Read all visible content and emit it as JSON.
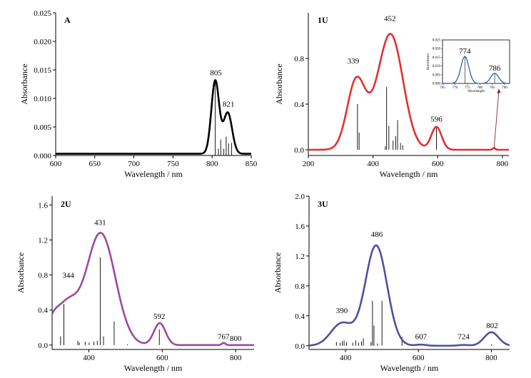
{
  "chart_data": [
    {
      "type": "line",
      "panel_label": "A",
      "xlabel": "Wavelength / nm",
      "ylabel": "Absorbance",
      "xlim": [
        600,
        850
      ],
      "ylim": [
        0,
        0.025
      ],
      "xticks": [
        600,
        650,
        700,
        750,
        800,
        850
      ],
      "xtick_labels": [
        "600",
        "650",
        "700",
        "750",
        "800",
        "850"
      ],
      "yticks": [
        0,
        0.005,
        0.01,
        0.015,
        0.02,
        0.025
      ],
      "ytick_labels": [
        "0.000",
        "0.005",
        "0.010",
        "0.015",
        "0.020",
        "0.025"
      ],
      "color": "#000000",
      "bands": [
        {
          "center": 804,
          "height": 0.0128,
          "width": 5
        },
        {
          "center": 820,
          "height": 0.0072,
          "width": 5.5
        }
      ],
      "baseline": 0.0003,
      "sticks": [
        {
          "x": 804,
          "y": 0.0128
        },
        {
          "x": 808,
          "y": 0.0012
        },
        {
          "x": 811,
          "y": 0.0028
        },
        {
          "x": 815,
          "y": 0.0012
        },
        {
          "x": 818,
          "y": 0.0033
        },
        {
          "x": 821,
          "y": 0.0021
        },
        {
          "x": 825,
          "y": 0.0022
        }
      ],
      "annotations": [
        {
          "text": "805",
          "x": 805,
          "y": 0.0133
        },
        {
          "text": "821",
          "x": 821,
          "y": 0.0078
        }
      ]
    },
    {
      "type": "line",
      "panel_label": "1U",
      "xlabel": "Wavelength / nm",
      "ylabel": "Absorbance",
      "xlim": [
        200,
        820
      ],
      "ylim": [
        -0.05,
        1.2
      ],
      "xticks": [
        200,
        400,
        600,
        800
      ],
      "xtick_labels": [
        "200",
        "400",
        "600",
        "800"
      ],
      "yticks": [
        0,
        0.4,
        0.8
      ],
      "ytick_labels": [
        "0.0",
        "0.4",
        "0.8"
      ],
      "color": "#e03232",
      "bands": [
        {
          "center": 348,
          "height": 0.6,
          "width": 28
        },
        {
          "center": 455,
          "height": 1.0,
          "width": 38
        },
        {
          "center": 400,
          "height": 0.08,
          "width": 30
        },
        {
          "center": 596,
          "height": 0.2,
          "width": 16
        },
        {
          "center": 774,
          "height": 0.015,
          "width": 4
        }
      ],
      "baseline": 0,
      "sticks": [
        {
          "x": 352,
          "y": 0.4
        },
        {
          "x": 357,
          "y": 0.15
        },
        {
          "x": 438,
          "y": 0.03
        },
        {
          "x": 442,
          "y": 0.55
        },
        {
          "x": 449,
          "y": 0.21
        },
        {
          "x": 462,
          "y": 0.08
        },
        {
          "x": 470,
          "y": 0.12
        },
        {
          "x": 476,
          "y": 0.26
        },
        {
          "x": 485,
          "y": 0.06
        },
        {
          "x": 492,
          "y": 0.04
        },
        {
          "x": 596,
          "y": 0.2
        }
      ],
      "annotations": [
        {
          "text": "339",
          "x": 339,
          "y": 0.72
        },
        {
          "text": "452",
          "x": 452,
          "y": 1.09
        },
        {
          "text": "596",
          "x": 596,
          "y": 0.21
        }
      ],
      "inset": {
        "type": "line",
        "xlabel": "Wavelength",
        "ylabel": "Absorbance",
        "xlim": [
          765,
          792
        ],
        "ylim": [
          0,
          0.025
        ],
        "xticks": [
          765,
          770,
          775,
          780,
          785,
          790
        ],
        "xtick_labels": [
          "765",
          "770",
          "775",
          "780",
          "785",
          "790"
        ],
        "yticks": [
          0,
          0.005,
          0.01,
          0.015,
          0.02,
          0.025
        ],
        "ytick_labels": [
          "0.000",
          "0.005",
          "0.010",
          "0.015",
          "0.020",
          "0.025"
        ],
        "color": "#3a6bb0",
        "bands": [
          {
            "center": 774,
            "height": 0.0155,
            "width": 1.6
          },
          {
            "center": 786,
            "height": 0.0058,
            "width": 1.6
          }
        ],
        "sticks": [
          {
            "x": 774,
            "y": 0.0155
          },
          {
            "x": 786,
            "y": 0.0058
          }
        ],
        "annotations": [
          {
            "text": "774",
            "x": 774,
            "y": 0.0155
          },
          {
            "text": "786",
            "x": 786,
            "y": 0.0058
          }
        ]
      }
    },
    {
      "type": "line",
      "panel_label": "2U",
      "xlabel": "Wavelength / nm",
      "ylabel": "Absorbance",
      "xlim": [
        300,
        850
      ],
      "ylim": [
        -0.05,
        1.7
      ],
      "xticks": [
        400,
        600,
        800
      ],
      "xtick_labels": [
        "400",
        "600",
        "800"
      ],
      "yticks": [
        0,
        0.4,
        0.8,
        1.2,
        1.6
      ],
      "ytick_labels": [
        "0.0",
        "0.4",
        "0.8",
        "1.2",
        "1.6"
      ],
      "color": "#9b4a9e",
      "bands": [
        {
          "center": 300,
          "height": 0.2,
          "width": 18
        },
        {
          "center": 340,
          "height": 0.42,
          "width": 28
        },
        {
          "center": 432,
          "height": 1.28,
          "width": 40
        },
        {
          "center": 593,
          "height": 0.25,
          "width": 16
        },
        {
          "center": 767,
          "height": 0.025,
          "width": 5
        }
      ],
      "baseline": 0,
      "sticks": [
        {
          "x": 323,
          "y": 0.1
        },
        {
          "x": 332,
          "y": 0.47
        },
        {
          "x": 370,
          "y": 0.05
        },
        {
          "x": 374,
          "y": 0.03
        },
        {
          "x": 390,
          "y": 0.04
        },
        {
          "x": 401,
          "y": 0.03
        },
        {
          "x": 414,
          "y": 0.04
        },
        {
          "x": 423,
          "y": 0.05
        },
        {
          "x": 431,
          "y": 1.0
        },
        {
          "x": 440,
          "y": 0.1
        },
        {
          "x": 469,
          "y": 0.27
        },
        {
          "x": 505,
          "y": 0.01
        },
        {
          "x": 592,
          "y": 0.18
        }
      ],
      "annotations": [
        {
          "text": "344",
          "x": 344,
          "y": 0.72
        },
        {
          "text": "431",
          "x": 431,
          "y": 1.32
        },
        {
          "text": "592",
          "x": 592,
          "y": 0.25
        },
        {
          "text": "767",
          "x": 767,
          "y": 0.02
        },
        {
          "text": "800",
          "x": 800,
          "y": 0.0
        }
      ]
    },
    {
      "type": "line",
      "panel_label": "3U",
      "xlabel": "Wavelength / nm",
      "ylabel": "Absorbance",
      "xlim": [
        300,
        850
      ],
      "ylim": [
        -0.05,
        2.0
      ],
      "xticks": [
        400,
        600,
        800
      ],
      "xtick_labels": [
        "400",
        "600",
        "800"
      ],
      "yticks": [
        0,
        0.4,
        0.8,
        1.2,
        1.6,
        2.0
      ],
      "ytick_labels": [
        "0.0",
        "0.4",
        "0.8",
        "1.2",
        "1.6",
        "2.0"
      ],
      "color": "#5050a0",
      "bands": [
        {
          "center": 390,
          "height": 0.3,
          "width": 30
        },
        {
          "center": 484,
          "height": 1.34,
          "width": 30
        },
        {
          "center": 607,
          "height": 0.015,
          "width": 14
        },
        {
          "center": 724,
          "height": 0.01,
          "width": 14
        },
        {
          "center": 800,
          "height": 0.18,
          "width": 20
        }
      ],
      "baseline": 0,
      "sticks": [
        {
          "x": 375,
          "y": 0.05
        },
        {
          "x": 385,
          "y": 0.04
        },
        {
          "x": 391,
          "y": 0.06
        },
        {
          "x": 396,
          "y": 0.07
        },
        {
          "x": 403,
          "y": 0.05
        },
        {
          "x": 420,
          "y": 0.04
        },
        {
          "x": 428,
          "y": 0.07
        },
        {
          "x": 436,
          "y": 0.04
        },
        {
          "x": 444,
          "y": 0.06
        },
        {
          "x": 449,
          "y": 0.1
        },
        {
          "x": 470,
          "y": 0.05
        },
        {
          "x": 474,
          "y": 0.6
        },
        {
          "x": 478,
          "y": 0.27
        },
        {
          "x": 488,
          "y": 0.03
        },
        {
          "x": 500,
          "y": 0.6
        },
        {
          "x": 555,
          "y": 0.12
        },
        {
          "x": 800,
          "y": 0.02
        }
      ],
      "annotations": [
        {
          "text": "390",
          "x": 390,
          "y": 0.38
        },
        {
          "text": "486",
          "x": 486,
          "y": 1.4
        },
        {
          "text": "607",
          "x": 607,
          "y": 0.03
        },
        {
          "text": "724",
          "x": 724,
          "y": 0.03
        },
        {
          "text": "802",
          "x": 802,
          "y": 0.18
        }
      ]
    }
  ]
}
